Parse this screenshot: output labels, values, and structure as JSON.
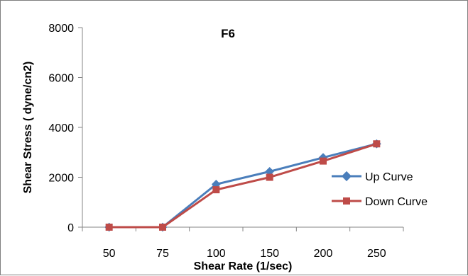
{
  "chart_data": {
    "type": "line",
    "title": "F6",
    "xlabel": "Shear Rate (1/sec)",
    "ylabel": "Shear  Stress ( dyne/cn2)",
    "categories": [
      "50",
      "75",
      "100",
      "150",
      "200",
      "250"
    ],
    "ylim": [
      0,
      8000
    ],
    "yticks": [
      "0",
      "2000",
      "4000",
      "6000",
      "8000"
    ],
    "grid": false,
    "legend_position": "right",
    "series": [
      {
        "name": "Up Curve",
        "values": [
          0,
          0,
          1720,
          2230,
          2790,
          3340
        ],
        "color": "#4a7ebb",
        "marker": "diamond"
      },
      {
        "name": "Down Curve",
        "values": [
          0,
          0,
          1500,
          2000,
          2650,
          3340
        ],
        "color": "#be4b48",
        "marker": "square"
      }
    ]
  }
}
